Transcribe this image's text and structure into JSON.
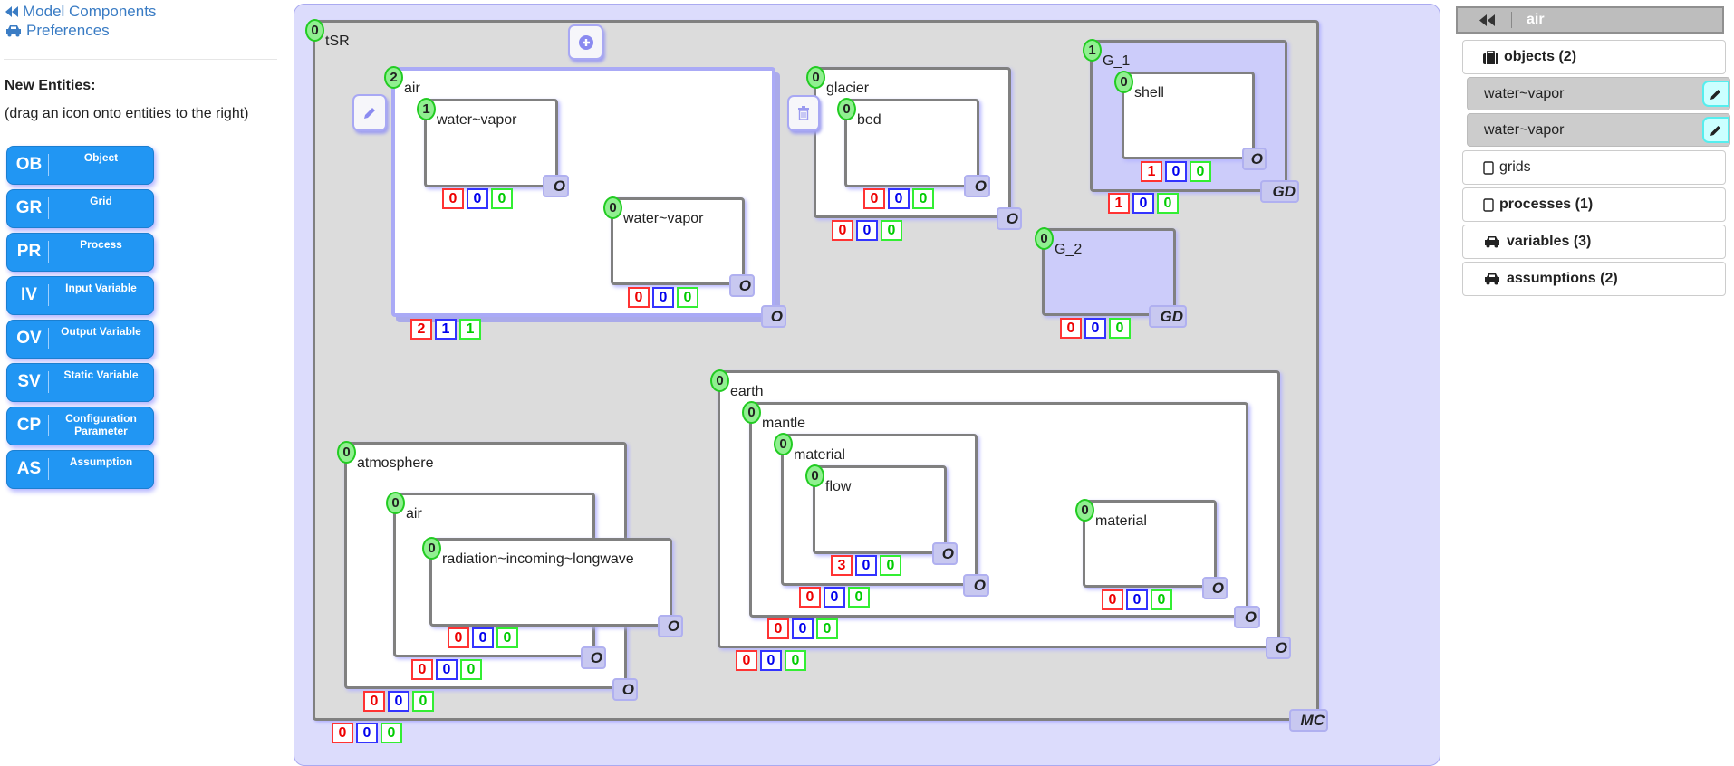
{
  "sidebar": {
    "model_components_label": "Model Components",
    "preferences_label": "Preferences",
    "new_entities_heading": "New Entities:",
    "hint": "(drag an icon onto entities to the right)",
    "entity_buttons": [
      {
        "abbr": "OB",
        "label": "Object"
      },
      {
        "abbr": "GR",
        "label": "Grid"
      },
      {
        "abbr": "PR",
        "label": "Process"
      },
      {
        "abbr": "IV",
        "label": "Input Variable"
      },
      {
        "abbr": "OV",
        "label": "Output Variable"
      },
      {
        "abbr": "SV",
        "label": "Static Variable"
      },
      {
        "abbr": "CP",
        "label": "Configuration Parameter"
      },
      {
        "abbr": "AS",
        "label": "Assumption"
      }
    ]
  },
  "canvas": {
    "entities": [
      {
        "name": "tSR",
        "badge": "0",
        "counters": [
          "0",
          "0",
          "0"
        ],
        "tag": "MC",
        "kind": "model"
      },
      {
        "name": "air",
        "badge": "2",
        "counters": [
          "2",
          "1",
          "1"
        ],
        "tag": "O",
        "kind": "object",
        "selected": true
      },
      {
        "name": "water~vapor",
        "badge": "1",
        "counters": [
          "0",
          "0",
          "0"
        ],
        "tag": "O",
        "kind": "object"
      },
      {
        "name": "water~vapor",
        "badge": "0",
        "counters": [
          "0",
          "0",
          "0"
        ],
        "tag": "O",
        "kind": "object"
      },
      {
        "name": "glacier",
        "badge": "0",
        "counters": [
          "0",
          "0",
          "0"
        ],
        "tag": "O",
        "kind": "object"
      },
      {
        "name": "bed",
        "badge": "0",
        "counters": [
          "0",
          "0",
          "0"
        ],
        "tag": "O",
        "kind": "object"
      },
      {
        "name": "G_1",
        "badge": "1",
        "counters": [
          "1",
          "0",
          "0"
        ],
        "tag": "GD",
        "kind": "grid"
      },
      {
        "name": "shell",
        "badge": "0",
        "counters": [
          "1",
          "0",
          "0"
        ],
        "tag": "O",
        "kind": "object"
      },
      {
        "name": "G_2",
        "badge": "0",
        "counters": [
          "0",
          "0",
          "0"
        ],
        "tag": "GD",
        "kind": "grid"
      },
      {
        "name": "atmosphere",
        "badge": "0",
        "counters": [
          "0",
          "0",
          "0"
        ],
        "tag": "O",
        "kind": "object"
      },
      {
        "name": "air",
        "badge": "0",
        "counters": [
          "0",
          "0",
          "0"
        ],
        "tag": "O",
        "kind": "object"
      },
      {
        "name": "radiation~incoming~longwave",
        "badge": "0",
        "counters": [
          "0",
          "0",
          "0"
        ],
        "tag": "O",
        "kind": "object"
      },
      {
        "name": "earth",
        "badge": "0",
        "counters": [
          "0",
          "0",
          "0"
        ],
        "tag": "O",
        "kind": "object"
      },
      {
        "name": "mantle",
        "badge": "0",
        "counters": [
          "0",
          "0",
          "0"
        ],
        "tag": "O",
        "kind": "object"
      },
      {
        "name": "material",
        "badge": "0",
        "counters": [
          "0",
          "0",
          "0"
        ],
        "tag": "O",
        "kind": "object"
      },
      {
        "name": "flow",
        "badge": "0",
        "counters": [
          "3",
          "0",
          "0"
        ],
        "tag": "O",
        "kind": "object"
      },
      {
        "name": "material",
        "badge": "0",
        "counters": [
          "0",
          "0",
          "0"
        ],
        "tag": "O",
        "kind": "object"
      }
    ],
    "counter_colors": [
      "#ee0000",
      "#0000ee",
      "#00cc00"
    ]
  },
  "right_panel": {
    "title": "air",
    "objects_label": "objects (2)",
    "objects": [
      "water~vapor",
      "water~vapor"
    ],
    "grids_label": "grids",
    "processes_label": "processes (1)",
    "variables_label": "variables (3)",
    "assumptions_label": "assumptions (2)"
  }
}
